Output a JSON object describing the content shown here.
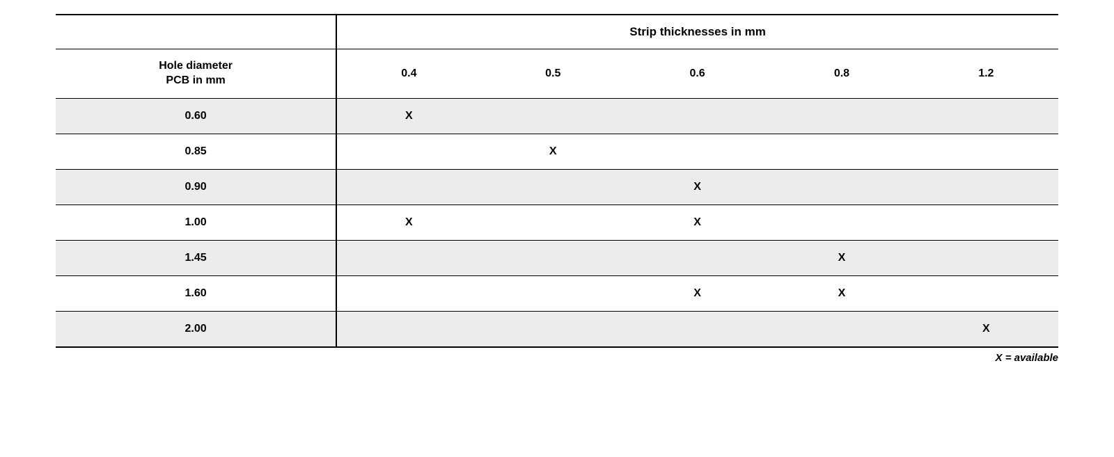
{
  "table": {
    "span_header": "Strip thicknesses in mm",
    "row_header_title_line1": "Hole diameter",
    "row_header_title_line2": "PCB in mm",
    "columns": [
      "0.4",
      "0.5",
      "0.6",
      "0.8",
      "1.2"
    ],
    "mark": "X",
    "rows": [
      {
        "label": "0.60",
        "cells": [
          "X",
          "",
          "",
          "",
          ""
        ],
        "shaded": true
      },
      {
        "label": "0.85",
        "cells": [
          "",
          "X",
          "",
          "",
          ""
        ],
        "shaded": false
      },
      {
        "label": "0.90",
        "cells": [
          "",
          "",
          "X",
          "",
          ""
        ],
        "shaded": true
      },
      {
        "label": "1.00",
        "cells": [
          "X",
          "",
          "X",
          "",
          ""
        ],
        "shaded": false
      },
      {
        "label": "1.45",
        "cells": [
          "",
          "",
          "",
          "X",
          ""
        ],
        "shaded": true
      },
      {
        "label": "1.60",
        "cells": [
          "",
          "",
          "X",
          "X",
          ""
        ],
        "shaded": false
      },
      {
        "label": "2.00",
        "cells": [
          "",
          "",
          "",
          "",
          "X"
        ],
        "shaded": true
      }
    ],
    "legend": "X = available",
    "colors": {
      "shade": "#ececec",
      "border": "#000000",
      "text": "#000000",
      "background": "#ffffff"
    }
  }
}
